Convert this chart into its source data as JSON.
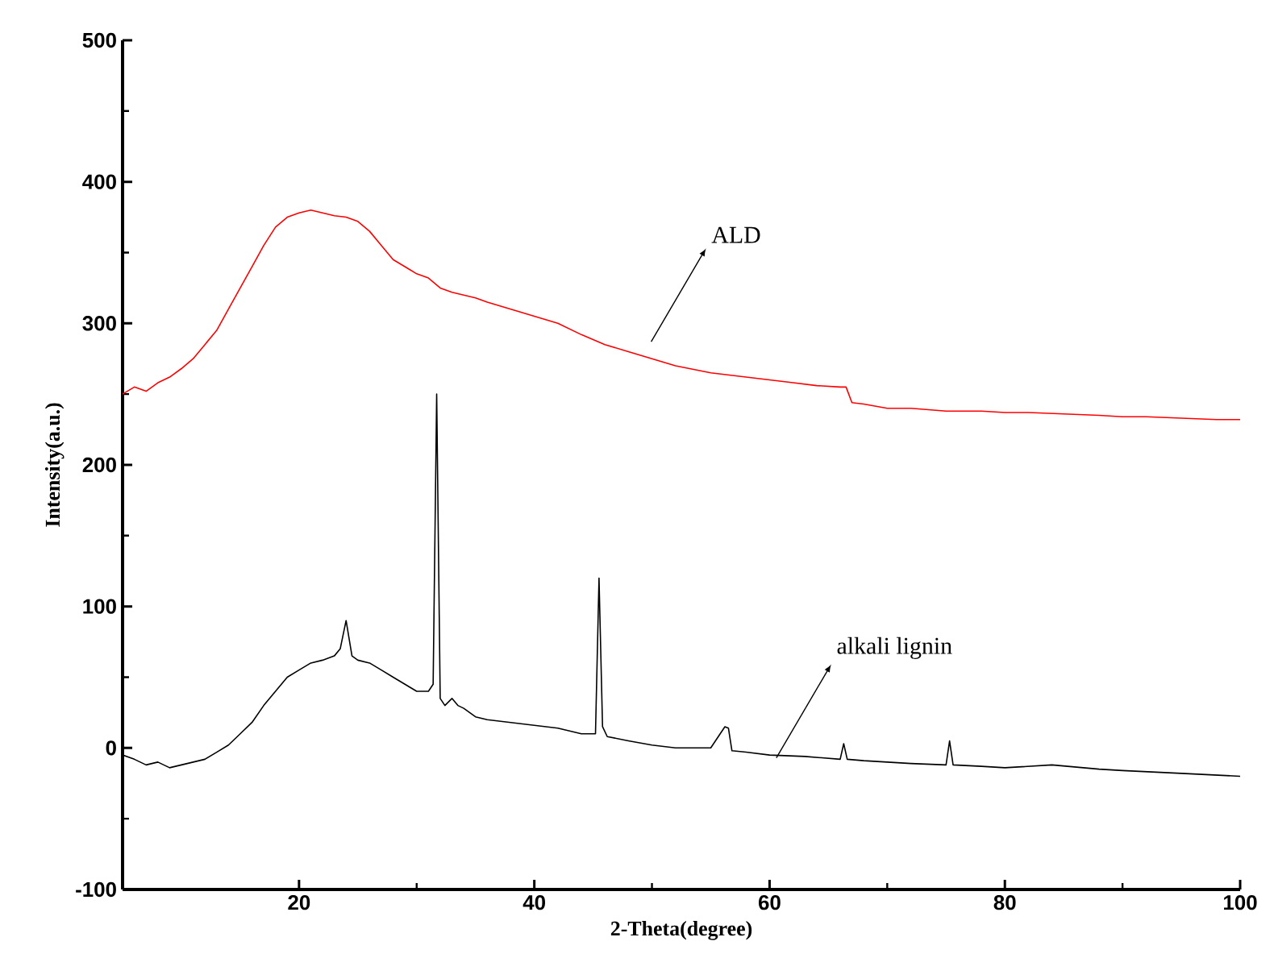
{
  "chart_data": {
    "type": "line",
    "xlabel": "2-Theta(degree)",
    "ylabel": "Intensity(a.u.)",
    "xlim": [
      5,
      100
    ],
    "xticks": [
      20,
      40,
      60,
      80,
      100
    ],
    "ylim": [
      -100,
      500
    ],
    "yticks": [
      -100,
      0,
      100,
      200,
      300,
      400,
      500
    ],
    "grid": false,
    "marker": "none",
    "line_style": "solid",
    "series": [
      {
        "color": "#ff0000",
        "x": [
          5,
          6,
          7,
          8,
          9,
          10,
          11,
          12,
          13,
          14,
          15,
          16,
          17,
          18,
          19,
          20,
          21,
          22,
          23,
          24,
          25,
          26,
          27,
          28,
          29,
          30,
          31,
          32,
          33,
          34,
          35,
          36,
          38,
          40,
          42,
          44,
          46,
          48,
          50,
          52,
          55,
          58,
          60,
          62,
          64,
          66,
          66.5,
          67,
          68,
          70,
          72,
          75,
          78,
          80,
          82,
          85,
          88,
          90,
          92,
          95,
          98,
          100
        ],
        "values": [
          250,
          255,
          252,
          258,
          262,
          268,
          275,
          285,
          295,
          310,
          325,
          340,
          355,
          368,
          375,
          378,
          380,
          378,
          376,
          375,
          372,
          365,
          355,
          345,
          340,
          335,
          332,
          325,
          322,
          320,
          318,
          315,
          310,
          305,
          300,
          292,
          285,
          280,
          275,
          270,
          265,
          262,
          260,
          258,
          256,
          255,
          255,
          244,
          243,
          240,
          240,
          238,
          238,
          237,
          237,
          236,
          235,
          234,
          234,
          233,
          232,
          232
        ]
      },
      {
        "color": "#000000",
        "x": [
          5,
          6,
          7,
          8,
          9,
          10,
          11,
          12,
          13,
          14,
          15,
          16,
          17,
          18,
          19,
          20,
          21,
          22,
          23,
          23.5,
          24,
          24.5,
          25,
          26,
          27,
          28,
          29,
          30,
          31,
          31.4,
          31.7,
          32,
          32.4,
          33,
          33.5,
          34,
          35,
          36,
          38,
          40,
          42,
          44,
          45.2,
          45.5,
          45.8,
          46.2,
          48,
          50,
          52,
          55,
          56.2,
          56.5,
          56.8,
          58,
          60,
          63,
          66,
          66.3,
          66.6,
          68,
          70,
          72,
          75,
          75.3,
          75.6,
          78,
          80,
          84,
          88,
          90,
          95,
          100
        ],
        "values": [
          -5,
          -8,
          -12,
          -10,
          -14,
          -12,
          -10,
          -8,
          -3,
          2,
          10,
          18,
          30,
          40,
          50,
          55,
          60,
          62,
          65,
          70,
          90,
          65,
          62,
          60,
          55,
          50,
          45,
          40,
          40,
          45,
          250,
          35,
          30,
          35,
          30,
          28,
          22,
          20,
          18,
          16,
          14,
          10,
          10,
          120,
          15,
          8,
          5,
          2,
          0,
          0,
          15,
          14,
          -2,
          -3,
          -5,
          -6,
          -8,
          3,
          -8,
          -9,
          -10,
          -11,
          -12,
          5,
          -12,
          -13,
          -14,
          -12,
          -15,
          -16,
          -18,
          -20
        ]
      }
    ],
    "annotations": [
      "ALD",
      "alkali lignin"
    ]
  }
}
